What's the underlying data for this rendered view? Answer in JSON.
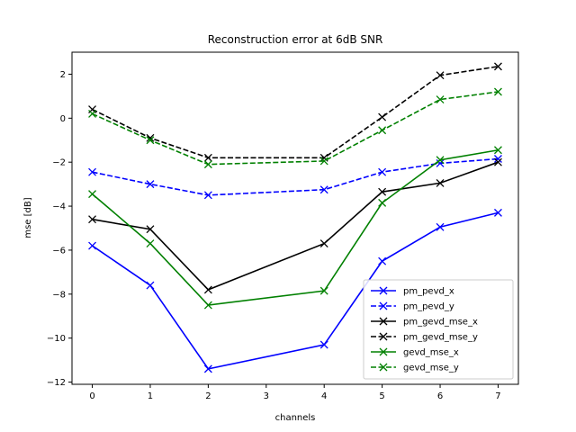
{
  "chart_data": {
    "type": "line",
    "title": "Reconstruction error at 6dB SNR",
    "xlabel": "channels",
    "ylabel": "mse [dB]",
    "x": [
      0,
      1,
      2,
      4,
      5,
      6,
      7
    ],
    "xticks": [
      0,
      1,
      2,
      3,
      4,
      5,
      6,
      7
    ],
    "yticks": [
      -12,
      -10,
      -8,
      -6,
      -4,
      -2,
      0,
      2
    ],
    "xlim": [
      -0.35,
      7.35
    ],
    "ylim": [
      -12.1,
      3.0
    ],
    "grid": false,
    "legend_position": "lower-right",
    "series": [
      {
        "name": "pm_pevd_x",
        "color": "#0000ff",
        "dash": "solid",
        "marker": "x",
        "values": [
          -5.8,
          -7.6,
          -11.4,
          -10.3,
          -6.5,
          -4.95,
          -4.3
        ]
      },
      {
        "name": "pm_pevd_y",
        "color": "#0000ff",
        "dash": "dashed",
        "marker": "x",
        "values": [
          -2.45,
          -3.0,
          -3.5,
          -3.25,
          -2.45,
          -2.05,
          -1.85
        ]
      },
      {
        "name": "pm_gevd_mse_x",
        "color": "#000000",
        "dash": "solid",
        "marker": "x",
        "values": [
          -4.6,
          -5.05,
          -7.8,
          -5.7,
          -3.35,
          -2.95,
          -2.0
        ]
      },
      {
        "name": "pm_gevd_mse_y",
        "color": "#000000",
        "dash": "dashed",
        "marker": "x",
        "values": [
          0.4,
          -0.9,
          -1.8,
          -1.8,
          0.05,
          1.95,
          2.35
        ]
      },
      {
        "name": "gevd_mse_x",
        "color": "#008000",
        "dash": "solid",
        "marker": "x",
        "values": [
          -3.45,
          -5.7,
          -8.5,
          -7.85,
          -3.85,
          -1.9,
          -1.45
        ]
      },
      {
        "name": "gevd_mse_y",
        "color": "#008000",
        "dash": "dashed",
        "marker": "x",
        "values": [
          0.2,
          -1.0,
          -2.1,
          -1.95,
          -0.55,
          0.85,
          1.2
        ]
      }
    ]
  }
}
